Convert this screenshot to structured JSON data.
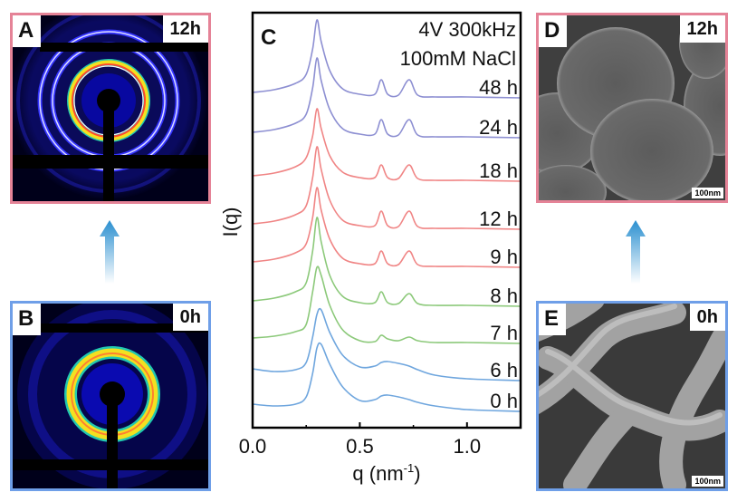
{
  "panels": {
    "A": {
      "letter": "A",
      "time": "12h"
    },
    "B": {
      "letter": "B",
      "time": "0h"
    },
    "D": {
      "letter": "D",
      "time": "12h",
      "scale_bar": "100nm"
    },
    "E": {
      "letter": "E",
      "time": "0h",
      "scale_bar": "100nm"
    }
  },
  "colors": {
    "pink_border": "#e58397",
    "blue_border": "#6f9fe8",
    "arrow": "#2a8fd0"
  },
  "chart_data": {
    "type": "line",
    "panel_letter": "C",
    "annotation": [
      "4V 300kHz",
      "100mM NaCl"
    ],
    "xlabel": "q (nm",
    "xlabel_sup": "-1",
    "xlabel_end": ")",
    "ylabel": "I(q)",
    "xlim": [
      0,
      1.25
    ],
    "ylim": [
      0,
      458
    ],
    "xticks": [
      0,
      0.5,
      1.0
    ],
    "xtick_labels": [
      "0.0",
      "0.5",
      "1.0"
    ],
    "y_units": "arbitrary (stacked offsets)",
    "q": [
      0,
      0.1,
      0.2,
      0.25,
      0.28,
      0.3,
      0.32,
      0.36,
      0.42,
      0.5,
      0.57,
      0.6,
      0.63,
      0.68,
      0.73,
      0.77,
      0.85,
      1.0,
      1.25
    ],
    "series": [
      {
        "name": "48 h",
        "color": "#8d8fd2",
        "values": [
          370,
          373,
          380,
          390,
          418,
          450,
          426,
          394,
          374,
          368,
          368,
          384,
          368,
          367,
          384,
          367,
          365,
          365,
          364
        ]
      },
      {
        "name": "24 h",
        "color": "#8d8fd2",
        "values": [
          326,
          329,
          336,
          346,
          375,
          408,
          383,
          351,
          330,
          324,
          324,
          340,
          324,
          323,
          340,
          323,
          321,
          321,
          320
        ]
      },
      {
        "name": "18 h",
        "color": "#f08585",
        "values": [
          278,
          281,
          288,
          298,
          322,
          352,
          330,
          300,
          282,
          276,
          276,
          290,
          276,
          275,
          290,
          275,
          273,
          273,
          272
        ]
      },
      {
        "name": "12 h",
        "color": "#f08585",
        "values": [
          225,
          228,
          235,
          245,
          276,
          310,
          285,
          251,
          229,
          223,
          223,
          239,
          223,
          222,
          239,
          222,
          220,
          220,
          219
        ]
      },
      {
        "name": "9 h",
        "color": "#f08585",
        "values": [
          183,
          186,
          193,
          203,
          232,
          265,
          240,
          208,
          187,
          181,
          181,
          195,
          181,
          180,
          195,
          180,
          178,
          178,
          177
        ]
      },
      {
        "name": "8 h",
        "color": "#8cc97a",
        "values": [
          140,
          143,
          150,
          160,
          195,
          232,
          205,
          168,
          145,
          138,
          138,
          150,
          138,
          137,
          148,
          137,
          135,
          135,
          134
        ]
      },
      {
        "name": "7 h",
        "color": "#8cc97a",
        "values": [
          99,
          101,
          106,
          114,
          150,
          177,
          168,
          135,
          108,
          96,
          95,
          102,
          98,
          96,
          100,
          96,
          94,
          94,
          93
        ]
      },
      {
        "name": "6 h",
        "color": "#6fa6de",
        "values": [
          65,
          62,
          64,
          72,
          100,
          125,
          130,
          105,
          80,
          67,
          68,
          72,
          73,
          71,
          68,
          64,
          58,
          54,
          52
        ]
      },
      {
        "name": "0 h",
        "color": "#6fa6de",
        "values": [
          26,
          24,
          26,
          34,
          60,
          88,
          92,
          70,
          45,
          30,
          31,
          35,
          36,
          34,
          31,
          28,
          24,
          20,
          18
        ]
      }
    ]
  }
}
